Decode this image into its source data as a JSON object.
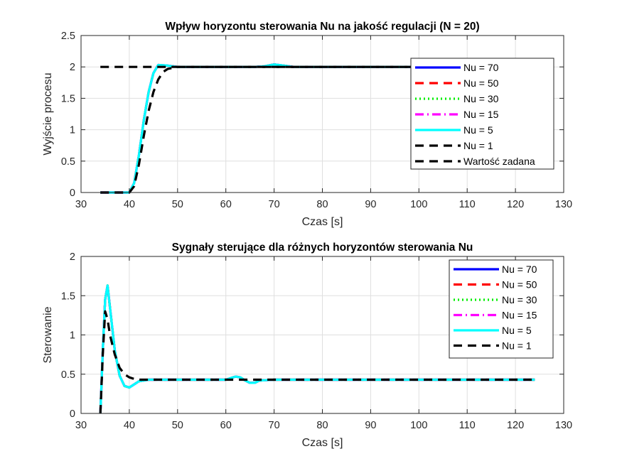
{
  "chart_data": [
    {
      "type": "line",
      "title": "Wpływ horyzontu sterowania Nu na jakość regulacji (N = 20)",
      "xlabel": "Czas [s]",
      "ylabel": "Wyjście procesu",
      "xlim": [
        30,
        130
      ],
      "ylim": [
        0,
        2.5
      ],
      "xticks": [
        "30",
        "40",
        "50",
        "60",
        "70",
        "80",
        "90",
        "100",
        "110",
        "120",
        "130"
      ],
      "yticks": [
        "0",
        "0.5",
        "1",
        "1.5",
        "2",
        "2.5"
      ],
      "grid": true,
      "legend_position": "top-right",
      "series": [
        {
          "name": "Nu = 70",
          "color": "#0000ff",
          "dash": "solid",
          "x": [
            34,
            38,
            40,
            41,
            42,
            43,
            44,
            45,
            46,
            48,
            50,
            60,
            66,
            68,
            70,
            72,
            74,
            80,
            100
          ],
          "y": [
            0,
            0,
            0,
            0.15,
            0.6,
            1.15,
            1.6,
            1.9,
            2.03,
            2.02,
            2.0,
            2.0,
            2.0,
            2.01,
            2.04,
            2.02,
            2.0,
            2.0,
            2.0
          ]
        },
        {
          "name": "Nu = 50",
          "color": "#ff0000",
          "dash": "dashed",
          "x": [
            34,
            38,
            40,
            41,
            42,
            43,
            44,
            45,
            46,
            48,
            50,
            60,
            66,
            68,
            70,
            72,
            74,
            80,
            100
          ],
          "y": [
            0,
            0,
            0,
            0.15,
            0.6,
            1.15,
            1.6,
            1.9,
            2.03,
            2.02,
            2.0,
            2.0,
            2.0,
            2.01,
            2.04,
            2.02,
            2.0,
            2.0,
            2.0
          ]
        },
        {
          "name": "Nu = 30",
          "color": "#00ee00",
          "dash": "dotted",
          "x": [
            34,
            38,
            40,
            41,
            42,
            43,
            44,
            45,
            46,
            48,
            50,
            60,
            66,
            68,
            70,
            72,
            74,
            80,
            100
          ],
          "y": [
            0,
            0,
            0,
            0.15,
            0.6,
            1.15,
            1.6,
            1.9,
            2.03,
            2.02,
            2.0,
            2.0,
            2.0,
            2.01,
            2.04,
            2.02,
            2.0,
            2.0,
            2.0
          ]
        },
        {
          "name": "Nu = 15",
          "color": "#ff00ff",
          "dash": "dashdot",
          "x": [
            34,
            38,
            40,
            41,
            42,
            43,
            44,
            45,
            46,
            48,
            50,
            60,
            66,
            68,
            70,
            72,
            74,
            80,
            100
          ],
          "y": [
            0,
            0,
            0,
            0.15,
            0.6,
            1.15,
            1.6,
            1.9,
            2.03,
            2.02,
            2.0,
            2.0,
            2.0,
            2.01,
            2.04,
            2.02,
            2.0,
            2.0,
            2.0
          ]
        },
        {
          "name": "Nu = 5",
          "color": "#00ffff",
          "dash": "solid",
          "x": [
            34,
            38,
            40,
            41,
            42,
            43,
            44,
            45,
            46,
            48,
            50,
            60,
            66,
            68,
            70,
            72,
            74,
            80,
            100
          ],
          "y": [
            0,
            0,
            0,
            0.15,
            0.6,
            1.15,
            1.6,
            1.9,
            2.03,
            2.02,
            2.0,
            2.0,
            2.0,
            2.01,
            2.04,
            2.02,
            2.0,
            2.0,
            2.0
          ]
        },
        {
          "name": "Nu = 1",
          "color": "#000000",
          "dash": "dashed",
          "x": [
            34,
            38,
            40,
            41,
            42,
            43,
            44,
            45,
            46,
            47,
            48,
            50,
            52,
            60,
            80,
            100
          ],
          "y": [
            0,
            0,
            0,
            0.1,
            0.45,
            0.9,
            1.3,
            1.6,
            1.8,
            1.92,
            1.97,
            2.0,
            2.0,
            2.0,
            2.0,
            2.0
          ]
        },
        {
          "name": "Wartość zadana",
          "color": "#000000",
          "dash": "dashed",
          "x": [
            34,
            100
          ],
          "y": [
            2,
            2
          ]
        }
      ]
    },
    {
      "type": "line",
      "title": "Sygnały sterujące dla różnych horyzontów sterowania Nu",
      "xlabel": "Czas [s]",
      "ylabel": "Sterowanie",
      "xlim": [
        30,
        130
      ],
      "ylim": [
        0,
        2
      ],
      "xticks": [
        "30",
        "40",
        "50",
        "60",
        "70",
        "80",
        "90",
        "100",
        "110",
        "120",
        "130"
      ],
      "yticks": [
        "0",
        "0.5",
        "1",
        "1.5",
        "2"
      ],
      "grid": true,
      "legend_position": "top-right",
      "series": [
        {
          "name": "Nu = 70",
          "color": "#0000ff",
          "dash": "solid",
          "x": [
            34,
            34.5,
            35,
            35.5,
            36,
            37,
            38,
            39,
            40,
            41,
            42,
            44,
            60,
            61,
            62,
            63,
            64,
            65,
            66,
            67,
            70,
            124
          ],
          "y": [
            0,
            0.8,
            1.45,
            1.63,
            1.35,
            0.8,
            0.48,
            0.35,
            0.33,
            0.37,
            0.41,
            0.43,
            0.43,
            0.45,
            0.47,
            0.46,
            0.42,
            0.39,
            0.39,
            0.42,
            0.43,
            0.43
          ]
        },
        {
          "name": "Nu = 50",
          "color": "#ff0000",
          "dash": "dashed",
          "x": [
            34,
            34.5,
            35,
            35.5,
            36,
            37,
            38,
            39,
            40,
            41,
            42,
            44,
            60,
            61,
            62,
            63,
            64,
            65,
            66,
            67,
            70,
            124
          ],
          "y": [
            0,
            0.8,
            1.45,
            1.63,
            1.35,
            0.8,
            0.48,
            0.35,
            0.33,
            0.37,
            0.41,
            0.43,
            0.43,
            0.45,
            0.47,
            0.46,
            0.42,
            0.39,
            0.39,
            0.42,
            0.43,
            0.43
          ]
        },
        {
          "name": "Nu = 30",
          "color": "#00ee00",
          "dash": "dotted",
          "x": [
            34,
            34.5,
            35,
            35.5,
            36,
            37,
            38,
            39,
            40,
            41,
            42,
            44,
            60,
            61,
            62,
            63,
            64,
            65,
            66,
            67,
            70,
            124
          ],
          "y": [
            0,
            0.8,
            1.45,
            1.63,
            1.35,
            0.8,
            0.48,
            0.35,
            0.33,
            0.37,
            0.41,
            0.43,
            0.43,
            0.45,
            0.47,
            0.46,
            0.42,
            0.39,
            0.39,
            0.42,
            0.43,
            0.43
          ]
        },
        {
          "name": "Nu = 15",
          "color": "#ff00ff",
          "dash": "dashdot",
          "x": [
            34,
            34.5,
            35,
            35.5,
            36,
            37,
            38,
            39,
            40,
            41,
            42,
            44,
            60,
            61,
            62,
            63,
            64,
            65,
            66,
            67,
            70,
            124
          ],
          "y": [
            0,
            0.8,
            1.45,
            1.63,
            1.35,
            0.8,
            0.48,
            0.35,
            0.33,
            0.37,
            0.41,
            0.43,
            0.43,
            0.45,
            0.47,
            0.46,
            0.42,
            0.39,
            0.39,
            0.42,
            0.43,
            0.43
          ]
        },
        {
          "name": "Nu = 5",
          "color": "#00ffff",
          "dash": "solid",
          "x": [
            34,
            34.5,
            35,
            35.5,
            36,
            37,
            38,
            39,
            40,
            41,
            42,
            44,
            60,
            61,
            62,
            63,
            64,
            65,
            66,
            67,
            70,
            124
          ],
          "y": [
            0,
            0.8,
            1.45,
            1.63,
            1.35,
            0.8,
            0.48,
            0.35,
            0.33,
            0.37,
            0.41,
            0.43,
            0.43,
            0.45,
            0.47,
            0.46,
            0.42,
            0.39,
            0.39,
            0.42,
            0.43,
            0.43
          ]
        },
        {
          "name": "Nu = 1",
          "color": "#000000",
          "dash": "dashed",
          "x": [
            34,
            34.5,
            35,
            35.5,
            36,
            37,
            38,
            39,
            40,
            41,
            42,
            44,
            124
          ],
          "y": [
            0,
            0.75,
            1.3,
            1.2,
            1.0,
            0.75,
            0.58,
            0.5,
            0.46,
            0.44,
            0.43,
            0.43,
            0.43
          ]
        }
      ]
    }
  ]
}
